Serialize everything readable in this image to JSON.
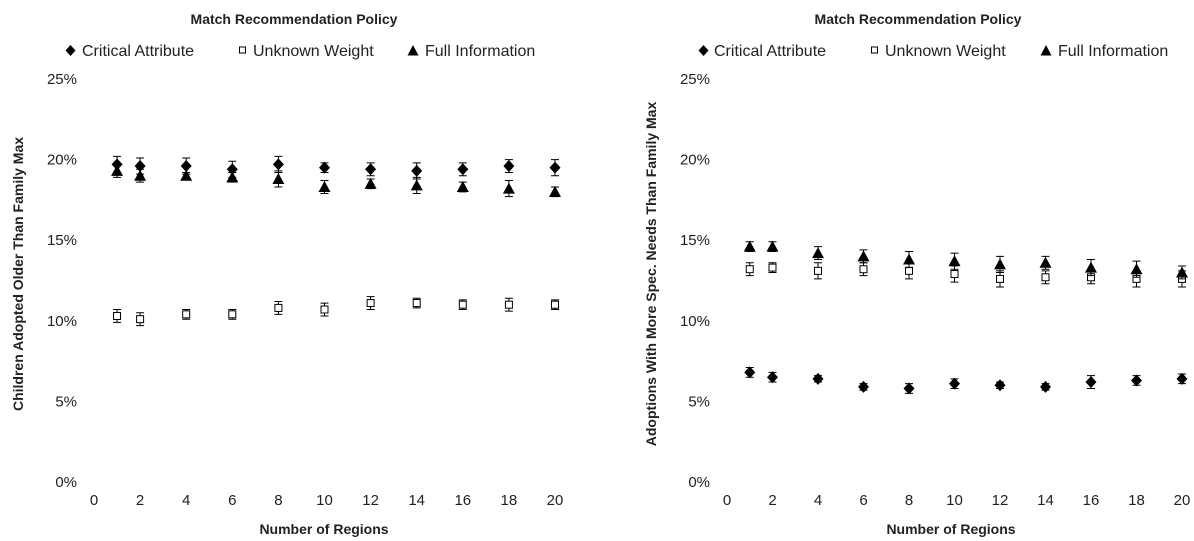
{
  "chart_data": [
    {
      "type": "scatter",
      "title": "Match Recommendation Policy",
      "xlabel": "Number of Regions",
      "ylabel": "Children Adopted Older Than Family Max",
      "xlim": [
        0,
        20
      ],
      "ylim": [
        0,
        25
      ],
      "xticks": [
        0,
        2,
        4,
        6,
        8,
        10,
        12,
        14,
        16,
        18,
        20
      ],
      "yticks": [
        0,
        5,
        10,
        15,
        20,
        25
      ],
      "yticklabels": [
        "0%",
        "5%",
        "10%",
        "15%",
        "20%",
        "25%"
      ],
      "y_unit": "%",
      "legend_position": "top",
      "error_bars": true,
      "x": [
        1,
        2,
        4,
        6,
        8,
        10,
        12,
        14,
        16,
        18,
        20
      ],
      "series": [
        {
          "name": "Critical Attribute",
          "marker": "diamond",
          "color": "#000000",
          "values": [
            19.7,
            19.6,
            19.6,
            19.4,
            19.7,
            19.5,
            19.4,
            19.3,
            19.4,
            19.6,
            19.5
          ],
          "errors": [
            0.5,
            0.5,
            0.5,
            0.5,
            0.5,
            0.3,
            0.4,
            0.5,
            0.4,
            0.4,
            0.5
          ]
        },
        {
          "name": "Unknown Weight",
          "marker": "square-open",
          "color": "#000000",
          "values": [
            10.3,
            10.1,
            10.4,
            10.4,
            10.8,
            10.7,
            11.1,
            11.1,
            11.0,
            11.0,
            11.0
          ],
          "errors": [
            0.4,
            0.4,
            0.3,
            0.3,
            0.4,
            0.4,
            0.4,
            0.3,
            0.3,
            0.4,
            0.3
          ]
        },
        {
          "name": "Full Information",
          "marker": "triangle",
          "color": "#000000",
          "values": [
            19.3,
            19.0,
            19.0,
            18.9,
            18.8,
            18.3,
            18.5,
            18.4,
            18.3,
            18.2,
            18.0
          ],
          "errors": [
            0.4,
            0.4,
            0.2,
            0.3,
            0.5,
            0.4,
            0.3,
            0.5,
            0.3,
            0.5,
            0.3
          ]
        }
      ]
    },
    {
      "type": "scatter",
      "title": "Match Recommendation Policy",
      "xlabel": "Number of Regions",
      "ylabel": "Adoptions With More Spec. Needs Than Family Max",
      "xlim": [
        0,
        20
      ],
      "ylim": [
        0,
        25
      ],
      "xticks": [
        0,
        2,
        4,
        6,
        8,
        10,
        12,
        14,
        16,
        18,
        20
      ],
      "yticks": [
        0,
        5,
        10,
        15,
        20,
        25
      ],
      "yticklabels": [
        "0%",
        "5%",
        "10%",
        "15%",
        "20%",
        "25%"
      ],
      "y_unit": "%",
      "legend_position": "top",
      "error_bars": true,
      "x": [
        1,
        2,
        4,
        6,
        8,
        10,
        12,
        14,
        16,
        18,
        20
      ],
      "series": [
        {
          "name": "Critical Attribute",
          "marker": "diamond",
          "color": "#000000",
          "values": [
            6.8,
            6.5,
            6.4,
            5.9,
            5.8,
            6.1,
            6.0,
            5.9,
            6.2,
            6.3,
            6.4
          ],
          "errors": [
            0.3,
            0.3,
            0.2,
            0.2,
            0.3,
            0.3,
            0.2,
            0.2,
            0.4,
            0.3,
            0.3
          ]
        },
        {
          "name": "Unknown Weight",
          "marker": "square-open",
          "color": "#000000",
          "values": [
            13.2,
            13.3,
            13.1,
            13.2,
            13.1,
            12.9,
            12.6,
            12.7,
            12.7,
            12.6,
            12.6
          ],
          "errors": [
            0.4,
            0.3,
            0.5,
            0.4,
            0.5,
            0.5,
            0.5,
            0.4,
            0.4,
            0.5,
            0.5
          ]
        },
        {
          "name": "Full Information",
          "marker": "triangle",
          "color": "#000000",
          "values": [
            14.6,
            14.6,
            14.2,
            14.0,
            13.8,
            13.7,
            13.5,
            13.6,
            13.3,
            13.2,
            13.0
          ],
          "errors": [
            0.3,
            0.3,
            0.4,
            0.4,
            0.5,
            0.5,
            0.5,
            0.4,
            0.5,
            0.5,
            0.4
          ]
        }
      ]
    }
  ]
}
